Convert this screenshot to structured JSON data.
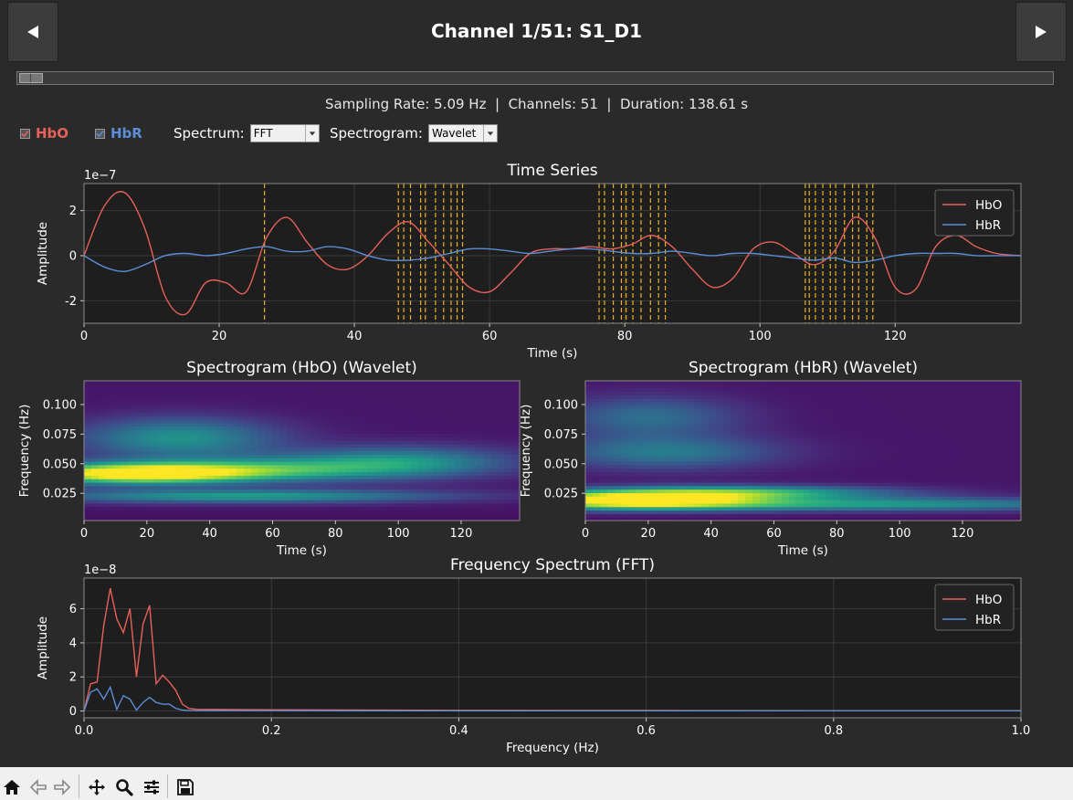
{
  "header": {
    "title": "Channel 1/51: S1_D1",
    "prev_icon": "triangle-left-icon",
    "next_icon": "triangle-right-icon"
  },
  "slider": {
    "position_fraction": 0.0
  },
  "info": {
    "text": "Sampling Rate: 5.09 Hz  |  Channels: 51  |  Duration: 138.61 s"
  },
  "controls": {
    "hbo_label": "HbO",
    "hbo_checked": true,
    "hbo_color": "#e8605a",
    "hbr_label": "HbR",
    "hbr_checked": true,
    "hbr_color": "#5b8ed6",
    "spectrum_label": "Spectrum:",
    "spectrum_value": "FFT",
    "spectrogram_label": "Spectrogram:",
    "spectrogram_value": "Wavelet"
  },
  "chart_data": [
    {
      "type": "line",
      "title": "Time Series",
      "xlabel": "Time (s)",
      "ylabel": "Amplitude",
      "y_scale_label": "1e−7",
      "xlim": [
        0,
        138.61
      ],
      "ylim": [
        -3,
        3.2
      ],
      "xticks": [
        0,
        20,
        40,
        60,
        80,
        100,
        120
      ],
      "yticks": [
        -2,
        0,
        2
      ],
      "grid": true,
      "legend": "top-right",
      "series": [
        {
          "name": "HbO",
          "color": "#e8605a",
          "x": [
            0,
            3,
            6,
            9,
            12,
            15,
            18,
            21,
            24,
            27,
            30,
            33,
            36,
            39,
            42,
            45,
            48,
            51,
            54,
            57,
            60,
            63,
            66,
            69,
            72,
            75,
            78,
            81,
            84,
            87,
            90,
            93,
            96,
            99,
            102,
            105,
            108,
            111,
            114,
            117,
            120,
            123,
            126,
            129,
            132,
            135,
            138.6
          ],
          "values": [
            0,
            2.2,
            2.8,
            1.2,
            -1.8,
            -2.6,
            -1.2,
            -1.2,
            -1.6,
            0.8,
            1.7,
            0.6,
            -0.4,
            -0.6,
            0,
            1.0,
            1.5,
            0.6,
            -0.4,
            -1.4,
            -1.6,
            -0.8,
            0.1,
            0.3,
            0.3,
            0.4,
            0.3,
            0.5,
            0.9,
            0.4,
            -0.6,
            -1.4,
            -1.0,
            0.3,
            0.6,
            0.1,
            -0.4,
            0.2,
            1.7,
            0.8,
            -1.4,
            -1.5,
            0.4,
            0.9,
            0.4,
            0.1,
            0
          ]
        },
        {
          "name": "HbR",
          "color": "#5b8ed6",
          "x": [
            0,
            3,
            6,
            9,
            12,
            15,
            18,
            21,
            24,
            27,
            30,
            33,
            36,
            39,
            42,
            45,
            48,
            51,
            54,
            57,
            60,
            63,
            66,
            69,
            72,
            75,
            78,
            81,
            84,
            87,
            90,
            93,
            96,
            99,
            102,
            105,
            108,
            111,
            114,
            117,
            120,
            123,
            126,
            129,
            132,
            135,
            138.6
          ],
          "values": [
            0,
            -0.5,
            -0.7,
            -0.4,
            0,
            0.1,
            0,
            0.1,
            0.3,
            0.4,
            0.2,
            0.2,
            0.4,
            0.3,
            0,
            -0.2,
            -0.2,
            -0.1,
            0.1,
            0.3,
            0.3,
            0.2,
            0.1,
            0.2,
            0.3,
            0.3,
            0.2,
            0.1,
            0.1,
            0.2,
            0.1,
            0,
            0.1,
            0.1,
            0,
            -0.1,
            -0.2,
            -0.1,
            -0.3,
            -0.2,
            0,
            0.1,
            0.1,
            0.1,
            0,
            0,
            0
          ]
        }
      ],
      "markers_color": "#e8b41c",
      "event_markers": [
        26.7,
        46.5,
        47.3,
        48.3,
        49.8,
        50.5,
        52,
        53.2,
        54.3,
        55.2,
        56,
        76.2,
        77,
        78.3,
        79.5,
        80.2,
        81.2,
        82.4,
        83.8,
        85,
        86,
        106.7,
        107.3,
        108.2,
        109.3,
        110.4,
        111.2,
        112.5,
        113.7,
        114.6,
        115.8,
        116.7
      ]
    },
    {
      "type": "heatmap",
      "title": "Spectrogram (HbO) (Wavelet)",
      "xlabel": "Time (s)",
      "ylabel": "Frequency (Hz)",
      "xlim": [
        0,
        138.61
      ],
      "ylim": [
        0.002,
        0.12
      ],
      "xticks": [
        0,
        20,
        40,
        60,
        80,
        100,
        120
      ],
      "yticks": [
        0.025,
        0.05,
        0.075,
        0.1
      ],
      "ytick_labels": [
        "0.025",
        "0.050",
        "0.075",
        "0.100"
      ],
      "colormap": "viridis",
      "peaks": [
        {
          "t": 15,
          "f": 0.042,
          "intensity": 1.0,
          "st": 25,
          "sf": 0.006
        },
        {
          "t": 55,
          "f": 0.045,
          "intensity": 0.5,
          "st": 30,
          "sf": 0.007
        },
        {
          "t": 30,
          "f": 0.072,
          "intensity": 0.45,
          "st": 22,
          "sf": 0.012
        },
        {
          "t": 100,
          "f": 0.052,
          "intensity": 0.45,
          "st": 25,
          "sf": 0.009
        },
        {
          "t": 50,
          "f": 0.023,
          "intensity": 0.5,
          "st": 45,
          "sf": 0.004
        }
      ]
    },
    {
      "type": "heatmap",
      "title": "Spectrogram (HbR) (Wavelet)",
      "xlabel": "Time (s)",
      "ylabel": "Frequency (Hz)",
      "xlim": [
        0,
        138.61
      ],
      "ylim": [
        0.002,
        0.12
      ],
      "xticks": [
        0,
        20,
        40,
        60,
        80,
        100,
        120
      ],
      "yticks": [
        0.025,
        0.05,
        0.075,
        0.1
      ],
      "ytick_labels": [
        "0.025",
        "0.050",
        "0.075",
        "0.100"
      ],
      "colormap": "viridis",
      "peaks": [
        {
          "t": 15,
          "f": 0.019,
          "intensity": 1.0,
          "st": 28,
          "sf": 0.005
        },
        {
          "t": 45,
          "f": 0.026,
          "intensity": 0.65,
          "st": 35,
          "sf": 0.004
        },
        {
          "t": 25,
          "f": 0.06,
          "intensity": 0.35,
          "st": 25,
          "sf": 0.01
        },
        {
          "t": 90,
          "f": 0.016,
          "intensity": 0.5,
          "st": 55,
          "sf": 0.004
        },
        {
          "t": 20,
          "f": 0.09,
          "intensity": 0.3,
          "st": 20,
          "sf": 0.012
        }
      ]
    },
    {
      "type": "line",
      "title": "Frequency Spectrum (FFT)",
      "xlabel": "Frequency (Hz)",
      "ylabel": "Amplitude",
      "y_scale_label": "1e−8",
      "xlim": [
        0,
        1.0
      ],
      "ylim": [
        -0.4,
        7.8
      ],
      "xticks": [
        0,
        0.2,
        0.4,
        0.6,
        0.8,
        1.0
      ],
      "xtick_labels": [
        "0.0",
        "0.2",
        "0.4",
        "0.6",
        "0.8",
        "1.0"
      ],
      "yticks": [
        0,
        2,
        4,
        6
      ],
      "grid": true,
      "legend": "top-right",
      "series": [
        {
          "name": "HbO",
          "color": "#e8605a",
          "x": [
            0,
            0.007,
            0.014,
            0.021,
            0.028,
            0.035,
            0.042,
            0.049,
            0.056,
            0.063,
            0.07,
            0.077,
            0.084,
            0.091,
            0.098,
            0.105,
            0.112,
            0.12,
            0.2,
            0.4,
            0.6,
            0.8,
            1.0
          ],
          "values": [
            0,
            1.6,
            1.7,
            5.0,
            7.2,
            5.4,
            4.6,
            6.0,
            2.0,
            5.1,
            6.2,
            1.6,
            2.1,
            1.7,
            1.2,
            0.4,
            0.15,
            0.1,
            0.07,
            0.04,
            0.03,
            0.02,
            0.02
          ]
        },
        {
          "name": "HbR",
          "color": "#5b8ed6",
          "x": [
            0,
            0.007,
            0.014,
            0.021,
            0.028,
            0.035,
            0.042,
            0.049,
            0.056,
            0.063,
            0.07,
            0.077,
            0.084,
            0.091,
            0.098,
            0.105,
            0.112,
            0.12,
            0.2,
            0.4,
            0.6,
            0.8,
            1.0
          ],
          "values": [
            0,
            1.1,
            1.3,
            0.7,
            1.4,
            0.1,
            0.9,
            0.7,
            0.05,
            0.5,
            0.8,
            0.5,
            0.4,
            0.4,
            0.15,
            0.05,
            0.03,
            0.02,
            0.02,
            0.01,
            0.01,
            0.01,
            0.01
          ]
        }
      ]
    }
  ],
  "toolbar": {
    "icons": [
      "home-icon",
      "back-arrow-icon",
      "forward-arrow-icon",
      "pan-icon",
      "zoom-icon",
      "configure-icon",
      "save-icon"
    ]
  }
}
